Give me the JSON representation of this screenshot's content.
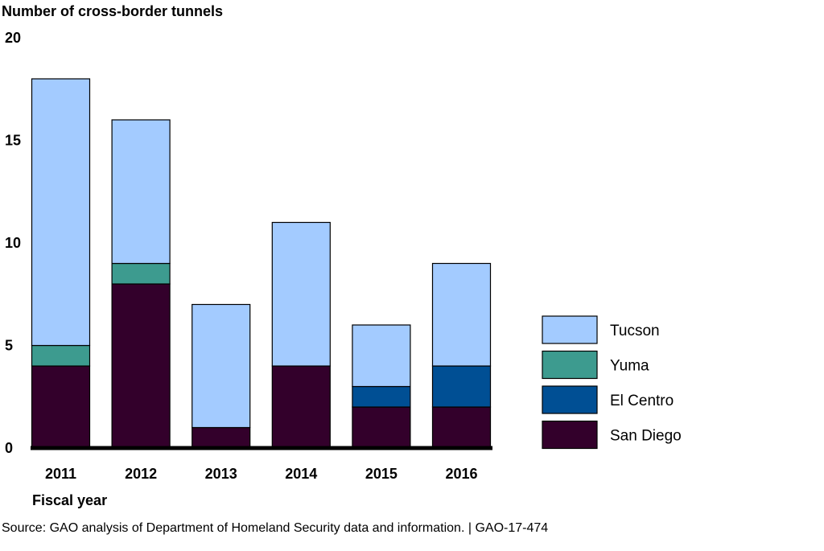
{
  "chart_data": {
    "type": "bar",
    "stacked": true,
    "title": "",
    "ylabel": "Number of cross-border tunnels",
    "xlabel": "Fiscal year",
    "categories": [
      "2011",
      "2012",
      "2013",
      "2014",
      "2015",
      "2016"
    ],
    "series": [
      {
        "name": "San Diego",
        "color": "#33002b",
        "values": [
          4,
          8,
          1,
          4,
          2,
          2
        ]
      },
      {
        "name": "El Centro",
        "color": "#004f94",
        "values": [
          0,
          0,
          0,
          0,
          1,
          2
        ]
      },
      {
        "name": "Yuma",
        "color": "#3d9b8f",
        "values": [
          1,
          1,
          0,
          0,
          0,
          0
        ]
      },
      {
        "name": "Tucson",
        "color": "#a3cbff",
        "values": [
          13,
          7,
          6,
          7,
          3,
          5
        ]
      }
    ],
    "ylim": [
      0,
      20
    ],
    "yticks": [
      0,
      5,
      10,
      15,
      20
    ],
    "grid": false,
    "legend_position": "right",
    "legend_order": [
      "Tucson",
      "Yuma",
      "El Centro",
      "San Diego"
    ]
  },
  "source_note": "Source: GAO analysis of Department of Homeland Security data and information.  |  GAO-17-474"
}
